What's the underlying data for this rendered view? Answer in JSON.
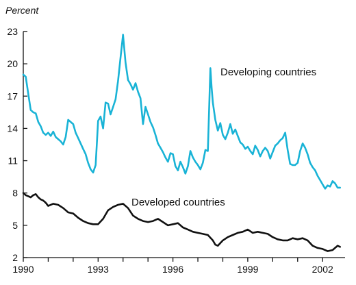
{
  "chart_data": {
    "type": "line",
    "ylabel": "Percent",
    "ylim": [
      2,
      23
    ],
    "xlim": [
      1990,
      2002.9
    ],
    "y_ticks": [
      "2",
      "5",
      "8",
      "11",
      "14",
      "17",
      "20",
      "23"
    ],
    "x_ticks": [
      "1990",
      "1993",
      "1996",
      "1999",
      "2002"
    ],
    "series": [
      {
        "name": "Developing countries",
        "color": "#19b3d6",
        "x": [
          1990.0,
          1990.1,
          1990.2,
          1990.3,
          1990.4,
          1990.5,
          1990.6,
          1990.7,
          1990.8,
          1990.9,
          1991.0,
          1991.1,
          1991.2,
          1991.3,
          1991.4,
          1991.5,
          1991.6,
          1991.7,
          1991.8,
          1991.9,
          1992.0,
          1992.1,
          1992.2,
          1992.3,
          1992.4,
          1992.5,
          1992.6,
          1992.7,
          1992.8,
          1992.9,
          1993.0,
          1993.1,
          1993.2,
          1993.3,
          1993.4,
          1993.5,
          1993.6,
          1993.7,
          1993.8,
          1993.9,
          1994.0,
          1994.1,
          1994.2,
          1994.3,
          1994.4,
          1994.5,
          1994.6,
          1994.7,
          1994.8,
          1994.9,
          1995.0,
          1995.1,
          1995.2,
          1995.3,
          1995.4,
          1995.5,
          1995.6,
          1995.7,
          1995.8,
          1995.9,
          1996.0,
          1996.1,
          1996.2,
          1996.3,
          1996.4,
          1996.5,
          1996.6,
          1996.7,
          1996.8,
          1996.9,
          1997.0,
          1997.1,
          1997.2,
          1997.3,
          1997.4,
          1997.5,
          1997.55,
          1997.6,
          1997.7,
          1997.8,
          1997.9,
          1998.0,
          1998.1,
          1998.2,
          1998.3,
          1998.4,
          1998.5,
          1998.6,
          1998.7,
          1998.8,
          1998.9,
          1999.0,
          1999.1,
          1999.2,
          1999.3,
          1999.4,
          1999.5,
          1999.6,
          1999.7,
          1999.8,
          1999.9,
          2000.0,
          2000.1,
          2000.2,
          2000.3,
          2000.4,
          2000.5,
          2000.6,
          2000.7,
          2000.8,
          2000.9,
          2001.0,
          2001.1,
          2001.2,
          2001.3,
          2001.4,
          2001.5,
          2001.6,
          2001.7,
          2001.8,
          2001.9,
          2002.0,
          2002.1,
          2002.2,
          2002.3,
          2002.4,
          2002.5,
          2002.6,
          2002.7
        ],
        "y": [
          19.0,
          18.8,
          17.2,
          15.7,
          15.5,
          15.4,
          14.6,
          14.2,
          13.6,
          13.4,
          13.6,
          13.3,
          13.7,
          13.2,
          13.0,
          12.8,
          12.5,
          13.2,
          14.8,
          14.6,
          14.4,
          13.6,
          13.1,
          12.6,
          12.1,
          11.6,
          10.8,
          10.2,
          9.9,
          10.6,
          14.7,
          15.1,
          14.0,
          16.4,
          16.3,
          15.3,
          16.0,
          16.7,
          18.4,
          20.6,
          22.7,
          20.1,
          18.5,
          18.1,
          17.6,
          18.2,
          17.4,
          16.8,
          14.4,
          16.0,
          15.3,
          14.6,
          14.1,
          13.4,
          12.6,
          12.2,
          11.8,
          11.3,
          10.9,
          11.7,
          11.6,
          10.5,
          10.1,
          10.9,
          10.4,
          9.8,
          10.5,
          11.9,
          11.3,
          10.9,
          10.6,
          10.2,
          10.8,
          12.0,
          11.9,
          19.6,
          17.8,
          16.4,
          14.8,
          13.8,
          14.5,
          13.4,
          13.0,
          13.6,
          14.4,
          13.5,
          13.9,
          13.3,
          12.7,
          12.5,
          12.1,
          12.3,
          11.9,
          11.6,
          12.4,
          12.0,
          11.4,
          11.9,
          12.2,
          11.9,
          11.2,
          11.8,
          12.4,
          12.6,
          12.9,
          13.1,
          13.6,
          12.0,
          10.7,
          10.6,
          10.6,
          10.8,
          11.9,
          12.6,
          12.2,
          11.6,
          10.8,
          10.4,
          10.1,
          9.6,
          9.2,
          8.8,
          8.4,
          8.7,
          8.6,
          9.1,
          8.9,
          8.5,
          8.5
        ]
      },
      {
        "name": "Developed countries",
        "color": "#111111",
        "x": [
          1990.0,
          1990.1,
          1990.2,
          1990.3,
          1990.4,
          1990.5,
          1990.6,
          1990.7,
          1990.8,
          1990.9,
          1991.0,
          1991.2,
          1991.4,
          1991.6,
          1991.8,
          1992.0,
          1992.2,
          1992.4,
          1992.6,
          1992.8,
          1993.0,
          1993.2,
          1993.4,
          1993.6,
          1993.8,
          1994.0,
          1994.2,
          1994.4,
          1994.6,
          1994.8,
          1995.0,
          1995.2,
          1995.4,
          1995.6,
          1995.8,
          1996.0,
          1996.2,
          1996.4,
          1996.6,
          1996.8,
          1997.0,
          1997.2,
          1997.4,
          1997.6,
          1997.7,
          1997.8,
          1998.0,
          1998.2,
          1998.4,
          1998.6,
          1998.8,
          1999.0,
          1999.2,
          1999.4,
          1999.6,
          1999.8,
          2000.0,
          2000.2,
          2000.4,
          2000.6,
          2000.8,
          2001.0,
          2001.2,
          2001.4,
          2001.6,
          2001.8,
          2002.0,
          2002.2,
          2002.4,
          2002.5,
          2002.6,
          2002.7
        ],
        "y": [
          8.0,
          7.8,
          7.7,
          7.6,
          7.8,
          7.9,
          7.6,
          7.4,
          7.3,
          7.1,
          6.8,
          7.0,
          6.9,
          6.6,
          6.2,
          6.1,
          5.7,
          5.4,
          5.2,
          5.1,
          5.1,
          5.6,
          6.4,
          6.7,
          6.9,
          7.0,
          6.6,
          5.9,
          5.6,
          5.4,
          5.3,
          5.4,
          5.6,
          5.3,
          5.0,
          5.1,
          5.2,
          4.8,
          4.6,
          4.4,
          4.3,
          4.2,
          4.1,
          3.6,
          3.2,
          3.1,
          3.6,
          3.9,
          4.1,
          4.3,
          4.4,
          4.6,
          4.3,
          4.4,
          4.3,
          4.2,
          3.9,
          3.7,
          3.6,
          3.6,
          3.8,
          3.7,
          3.8,
          3.6,
          3.1,
          2.9,
          2.8,
          2.6,
          2.7,
          2.9,
          3.1,
          3.0
        ]
      }
    ]
  }
}
